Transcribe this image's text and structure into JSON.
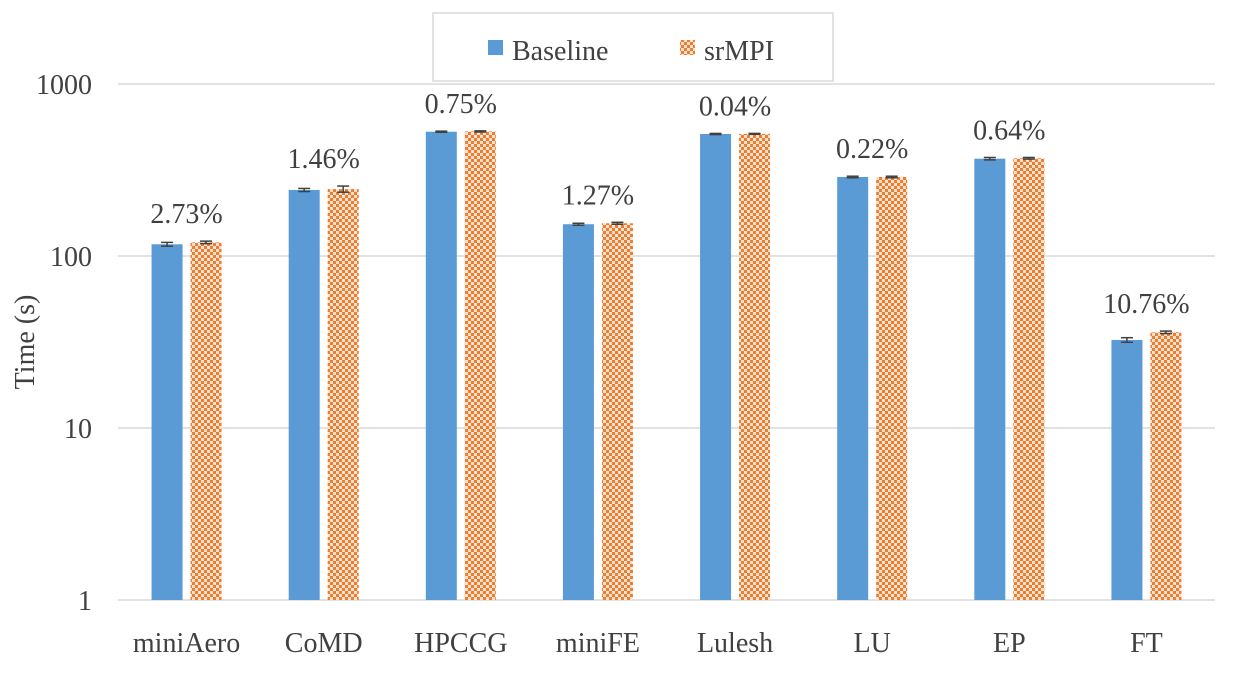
{
  "chart_data": {
    "type": "bar",
    "ylabel": "Time (s)",
    "yscale": "log",
    "ylim": [
      1,
      1000
    ],
    "yticks": [
      "1",
      "10",
      "100",
      "1000"
    ],
    "grid": true,
    "legend_position": "top-center",
    "categories": [
      "miniAero",
      "CoMD",
      "HPCCG",
      "miniFE",
      "Lulesh",
      "LU",
      "EP",
      "FT"
    ],
    "series": [
      {
        "name": "Baseline",
        "color": "#5b9bd5",
        "values": [
          117,
          242,
          528,
          153,
          512,
          288,
          368,
          32.5
        ],
        "errors": [
          3,
          5,
          4,
          2,
          4,
          3,
          6,
          1
        ]
      },
      {
        "name": "srMPI",
        "color": "#ed7d31",
        "pattern": "checker",
        "values": [
          120,
          245,
          530,
          155,
          513,
          288,
          370,
          36
        ],
        "errors": [
          2,
          10,
          4,
          2,
          3,
          3,
          4,
          0.6
        ]
      }
    ],
    "annotations": [
      "2.73%",
      "1.46%",
      "0.75%",
      "1.27%",
      "0.04%",
      "0.22%",
      "0.64%",
      "10.76%"
    ]
  }
}
